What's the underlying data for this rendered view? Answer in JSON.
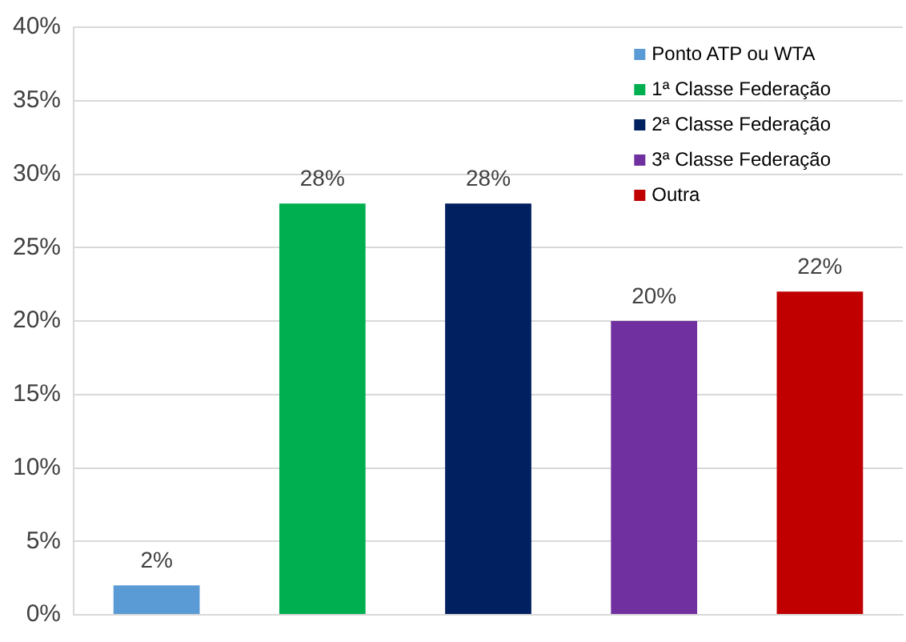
{
  "chart_data": {
    "type": "bar",
    "categories": [
      null,
      null,
      null,
      null,
      null
    ],
    "series": [
      {
        "name": "Ponto ATP ou WTA",
        "color": "#5b9bd5",
        "values": [
          2,
          null,
          null,
          null,
          null
        ],
        "value_labels": [
          "2%",
          null,
          null,
          null,
          null
        ]
      },
      {
        "name": "1ª Classe Federação",
        "color": "#00b050",
        "values": [
          null,
          28,
          null,
          null,
          null
        ],
        "value_labels": [
          null,
          "28%",
          null,
          null,
          null
        ]
      },
      {
        "name": "2ª Classe Federação",
        "color": "#002060",
        "values": [
          null,
          null,
          28,
          null,
          null
        ],
        "value_labels": [
          null,
          null,
          "28%",
          null,
          null
        ]
      },
      {
        "name": "3ª Classe Federação",
        "color": "#7030a0",
        "values": [
          null,
          null,
          null,
          20,
          null
        ],
        "value_labels": [
          null,
          null,
          null,
          "20%",
          null
        ]
      },
      {
        "name": "Outra",
        "color": "#c00000",
        "values": [
          null,
          null,
          null,
          null,
          22
        ],
        "value_labels": [
          null,
          null,
          null,
          null,
          "22%"
        ]
      }
    ],
    "ylim": [
      0,
      40
    ],
    "yticks": [
      {
        "value": 0,
        "label": "0%"
      },
      {
        "value": 5,
        "label": "5%"
      },
      {
        "value": 10,
        "label": "10%"
      },
      {
        "value": 15,
        "label": "15%"
      },
      {
        "value": 20,
        "label": "20%"
      },
      {
        "value": 25,
        "label": "25%"
      },
      {
        "value": 30,
        "label": "30%"
      },
      {
        "value": 35,
        "label": "35%"
      },
      {
        "value": 40,
        "label": "40%"
      }
    ],
    "grid": "y",
    "legend": "top right",
    "tick_labels": "y"
  }
}
